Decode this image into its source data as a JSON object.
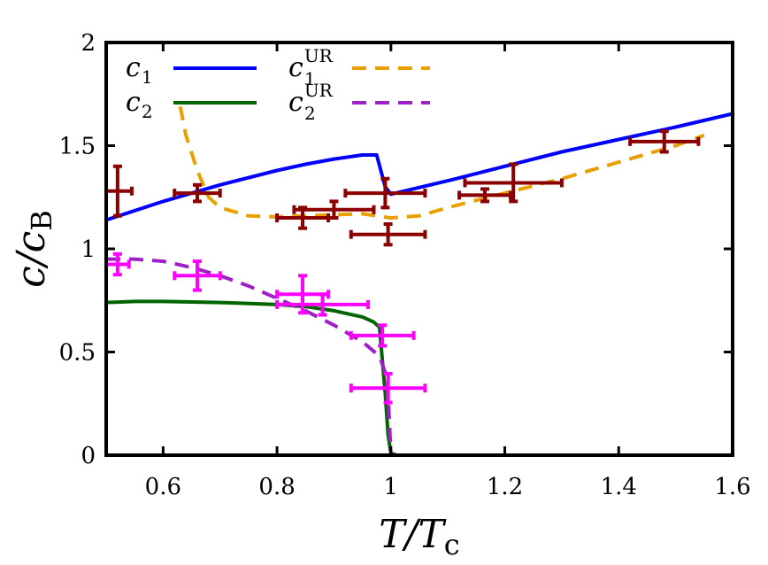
{
  "chart_data": {
    "type": "line",
    "xlabel": "T/T",
    "xlabel_sub": "c",
    "ylabel": "c/c",
    "ylabel_sub": "B",
    "xlim": [
      0.5,
      1.6
    ],
    "ylim": [
      0,
      2
    ],
    "xticks": [
      0.6,
      0.8,
      1.0,
      1.2,
      1.4,
      1.6
    ],
    "xtick_labels": [
      "0.6",
      "0.8",
      "1",
      "1.2",
      "1.4",
      "1.6"
    ],
    "yticks": [
      0,
      0.5,
      1,
      1.5,
      2
    ],
    "ytick_labels": [
      "0",
      "0.5",
      "1",
      "1.5",
      "2"
    ],
    "legend_position": "top-left",
    "series": [
      {
        "name": "c1",
        "label": "c",
        "sub": "1",
        "sup": "",
        "color": "#0000ff",
        "style": "solid",
        "x": [
          0.5,
          0.6,
          0.7,
          0.8,
          0.85,
          0.9,
          0.95,
          0.975,
          0.99,
          1.0,
          1.1,
          1.2,
          1.3,
          1.4,
          1.5,
          1.6
        ],
        "y": [
          1.14,
          1.23,
          1.31,
          1.38,
          1.41,
          1.435,
          1.455,
          1.455,
          1.3,
          1.265,
          1.33,
          1.4,
          1.47,
          1.53,
          1.59,
          1.655
        ]
      },
      {
        "name": "c2",
        "label": "c",
        "sub": "2",
        "sup": "",
        "color": "#006400",
        "style": "solid",
        "x": [
          0.5,
          0.55,
          0.6,
          0.7,
          0.8,
          0.85,
          0.9,
          0.95,
          0.97,
          0.98,
          0.99,
          0.995,
          1.0,
          1.01,
          1.03
        ],
        "y": [
          0.74,
          0.745,
          0.745,
          0.74,
          0.73,
          0.72,
          0.7,
          0.67,
          0.645,
          0.62,
          0.3,
          0.1,
          0.01,
          0.0,
          0.0
        ]
      },
      {
        "name": "c1UR",
        "label": "c",
        "sub": "1",
        "sup": "UR",
        "color": "#e8a000",
        "style": "dashed",
        "x": [
          0.63,
          0.64,
          0.66,
          0.68,
          0.7,
          0.75,
          0.8,
          0.85,
          0.9,
          0.95,
          1.0,
          1.05,
          1.1,
          1.2,
          1.3,
          1.4,
          1.5,
          1.55
        ],
        "y": [
          1.69,
          1.55,
          1.38,
          1.25,
          1.2,
          1.16,
          1.155,
          1.16,
          1.165,
          1.17,
          1.15,
          1.16,
          1.2,
          1.27,
          1.34,
          1.42,
          1.5,
          1.55
        ]
      },
      {
        "name": "c2UR",
        "label": "c",
        "sub": "2",
        "sup": "UR",
        "color": "#a020c8",
        "style": "dashed",
        "x": [
          0.5,
          0.55,
          0.6,
          0.65,
          0.7,
          0.75,
          0.8,
          0.85,
          0.9,
          0.95,
          0.98,
          0.99,
          0.995,
          1.0,
          1.12,
          1.2,
          1.3,
          1.4,
          1.5
        ],
        "y": [
          0.95,
          0.95,
          0.94,
          0.91,
          0.87,
          0.82,
          0.76,
          0.7,
          0.63,
          0.55,
          0.48,
          0.4,
          0.3,
          0.0,
          0.0,
          0.0,
          0.0,
          0.0,
          0.0
        ]
      }
    ],
    "error_points": [
      {
        "name": "c1-data",
        "color": "#8b0000",
        "points": [
          {
            "x": 0.52,
            "y": 1.28,
            "xerr": 0.025,
            "yerr": 0.12
          },
          {
            "x": 0.66,
            "y": 1.27,
            "xerr": 0.04,
            "yerr": 0.04
          },
          {
            "x": 0.845,
            "y": 1.15,
            "xerr": 0.045,
            "yerr": 0.05
          },
          {
            "x": 0.9,
            "y": 1.19,
            "xerr": 0.07,
            "yerr": 0.04
          },
          {
            "x": 0.99,
            "y": 1.27,
            "xerr": 0.07,
            "yerr": 0.07
          },
          {
            "x": 0.995,
            "y": 1.07,
            "xerr": 0.065,
            "yerr": 0.05
          },
          {
            "x": 1.165,
            "y": 1.26,
            "xerr": 0.045,
            "yerr": 0.03
          },
          {
            "x": 1.215,
            "y": 1.32,
            "xerr": 0.085,
            "yerr": 0.09
          },
          {
            "x": 1.48,
            "y": 1.52,
            "xerr": 0.06,
            "yerr": 0.05
          }
        ]
      },
      {
        "name": "c2-data",
        "color": "#ff00ff",
        "points": [
          {
            "x": 0.52,
            "y": 0.925,
            "xerr": 0.02,
            "yerr": 0.05
          },
          {
            "x": 0.66,
            "y": 0.87,
            "xerr": 0.04,
            "yerr": 0.07
          },
          {
            "x": 0.845,
            "y": 0.78,
            "xerr": 0.045,
            "yerr": 0.09
          },
          {
            "x": 0.88,
            "y": 0.73,
            "xerr": 0.08,
            "yerr": 0.05
          },
          {
            "x": 0.985,
            "y": 0.58,
            "xerr": 0.055,
            "yerr": 0.05
          },
          {
            "x": 0.995,
            "y": 0.325,
            "xerr": 0.065,
            "yerr": 0.07
          }
        ]
      }
    ]
  }
}
